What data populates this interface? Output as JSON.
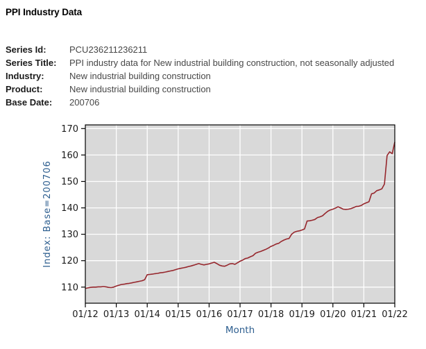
{
  "page": {
    "title": "PPI Industry Data"
  },
  "metadata": {
    "rows": [
      {
        "label": "Series Id:",
        "value": "PCU236211236211"
      },
      {
        "label": "Series Title:",
        "value": "PPI industry data for New industrial building construction, not seasonally adjusted"
      },
      {
        "label": "Industry:",
        "value": "New industrial building construction"
      },
      {
        "label": "Product:",
        "value": "New industrial building construction"
      },
      {
        "label": "Base Date:",
        "value": "200706"
      }
    ]
  },
  "chart_data": {
    "type": "line",
    "title": "",
    "xlabel": "Month",
    "ylabel": "Index: Base=200706",
    "x_unit": "month",
    "x_start": "01/12",
    "x_end": "01/22",
    "x_tick_labels": [
      "01/12",
      "01/13",
      "01/14",
      "01/15",
      "01/16",
      "01/17",
      "01/18",
      "01/19",
      "01/20",
      "01/21",
      "01/22"
    ],
    "months_per_tick": 12,
    "y_ticks": [
      110,
      120,
      130,
      140,
      150,
      160,
      170
    ],
    "ylim": [
      103.9,
      171.4
    ],
    "grid": true,
    "plot_bg": "#d9d9d9",
    "grid_color": "#ffffff",
    "border_color": "#000000",
    "tick_text_color": "#1a1a1a",
    "axis_title_color": "#2d5e8f",
    "series": [
      {
        "name": "PCU236211236211",
        "color": "#96262c",
        "values": [
          109.5,
          109.7,
          109.9,
          110.0,
          110.0,
          110.1,
          110.1,
          110.2,
          110.1,
          109.9,
          109.8,
          110.0,
          110.4,
          110.7,
          111.0,
          111.1,
          111.3,
          111.4,
          111.6,
          111.8,
          112.0,
          112.2,
          112.4,
          112.8,
          114.7,
          114.8,
          114.9,
          115.1,
          115.2,
          115.4,
          115.5,
          115.7,
          115.9,
          116.1,
          116.3,
          116.6,
          116.9,
          117.1,
          117.3,
          117.5,
          117.8,
          118.0,
          118.3,
          118.6,
          118.9,
          118.6,
          118.4,
          118.6,
          118.8,
          119.1,
          119.4,
          118.9,
          118.3,
          118.0,
          117.9,
          118.3,
          118.8,
          118.9,
          118.6,
          119.2,
          119.8,
          120.2,
          120.8,
          121.0,
          121.5,
          121.9,
          122.8,
          123.2,
          123.5,
          123.9,
          124.3,
          124.8,
          125.4,
          125.8,
          126.3,
          126.6,
          127.3,
          127.8,
          128.2,
          128.4,
          130.0,
          130.8,
          131.1,
          131.3,
          131.6,
          132.0,
          135.0,
          135.1,
          135.3,
          135.6,
          136.3,
          136.6,
          137.0,
          137.9,
          138.7,
          139.2,
          139.5,
          139.9,
          140.4,
          140.0,
          139.5,
          139.4,
          139.5,
          139.7,
          140.1,
          140.5,
          140.6,
          140.9,
          141.5,
          141.9,
          142.3,
          145.3,
          145.6,
          146.5,
          146.8,
          147.2,
          149.0,
          159.8,
          161.2,
          160.5,
          164.9
        ]
      }
    ]
  }
}
